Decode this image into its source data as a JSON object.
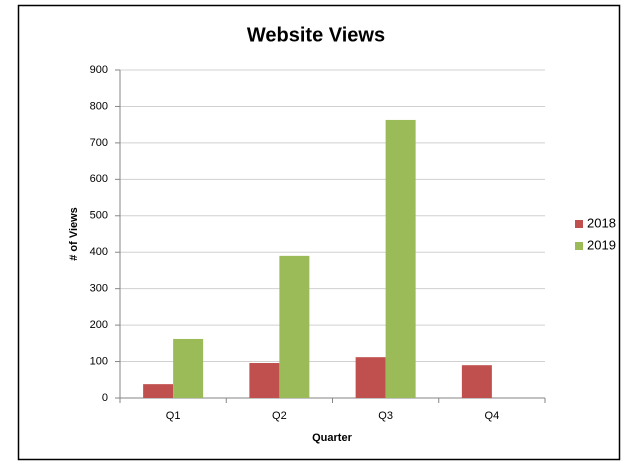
{
  "chart_data": {
    "type": "bar",
    "title": "Website Views",
    "x_label": "Quarter",
    "y_label": "# of Views",
    "categories": [
      "Q1",
      "Q2",
      "Q3",
      "Q4"
    ],
    "series": [
      {
        "name": "2018",
        "color": "#c0504d",
        "values": [
          38,
          96,
          112,
          90
        ]
      },
      {
        "name": "2019",
        "color": "#9bbb59",
        "values": [
          162,
          390,
          763,
          null
        ]
      }
    ],
    "ylim": [
      0,
      900
    ],
    "yticks": [
      0,
      100,
      200,
      300,
      400,
      500,
      600,
      700,
      800,
      900
    ],
    "grid": true,
    "legend": "right"
  }
}
